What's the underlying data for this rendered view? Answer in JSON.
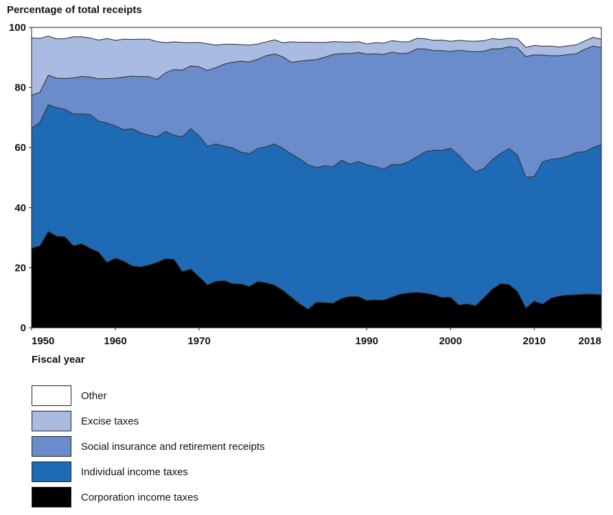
{
  "chart_data": {
    "type": "area",
    "stacked": true,
    "ylabel": "Percentage of total receipts",
    "xlabel": "Fiscal year",
    "ylim": [
      0,
      100
    ],
    "xlim": [
      1950,
      2018
    ],
    "yticks": [
      0,
      20,
      40,
      60,
      80,
      100
    ],
    "xticks": [
      1950,
      1960,
      1970,
      1990,
      2000,
      2010,
      2018
    ],
    "xtick_labels": [
      "1950",
      "1960",
      "1970",
      "1990",
      "2000",
      "2010",
      "2018"
    ],
    "grid": false,
    "legend_position": "bottom",
    "x": [
      1950,
      1951,
      1952,
      1953,
      1954,
      1955,
      1956,
      1957,
      1958,
      1959,
      1960,
      1961,
      1962,
      1963,
      1964,
      1965,
      1966,
      1967,
      1968,
      1969,
      1970,
      1971,
      1972,
      1973,
      1974,
      1975,
      1976,
      1977,
      1978,
      1979,
      1980,
      1981,
      1982,
      1983,
      1984,
      1985,
      1986,
      1987,
      1988,
      1989,
      1990,
      1991,
      1992,
      1993,
      1994,
      1995,
      1996,
      1997,
      1998,
      1999,
      2000,
      2001,
      2002,
      2003,
      2004,
      2005,
      2006,
      2007,
      2008,
      2009,
      2010,
      2011,
      2012,
      2013,
      2014,
      2015,
      2016,
      2017,
      2018
    ],
    "series": [
      {
        "name": "Corporation income taxes",
        "color": "#000000",
        "values": [
          26.5,
          27.3,
          32.1,
          30.5,
          30.3,
          27.3,
          28.0,
          26.5,
          25.2,
          21.8,
          23.2,
          22.2,
          20.6,
          20.3,
          20.9,
          21.8,
          23.0,
          22.8,
          18.7,
          19.6,
          17.0,
          14.3,
          15.5,
          15.7,
          14.7,
          14.6,
          13.8,
          15.4,
          15.0,
          14.2,
          12.5,
          10.2,
          8.0,
          6.2,
          8.5,
          8.4,
          8.2,
          9.8,
          10.4,
          10.4,
          9.1,
          9.3,
          9.2,
          10.2,
          11.2,
          11.6,
          11.8,
          11.5,
          11.0,
          10.1,
          10.2,
          7.6,
          8.0,
          7.4,
          10.1,
          12.9,
          14.7,
          14.4,
          12.1,
          6.6,
          8.9,
          7.9,
          9.9,
          10.6,
          10.9,
          11.0,
          11.2,
          11.2,
          11.0
        ]
      },
      {
        "name": "Individual income taxes",
        "color": "#1e6ab5",
        "values": [
          39.9,
          41.1,
          42.2,
          42.8,
          42.4,
          43.9,
          43.2,
          44.5,
          43.6,
          46.4,
          44.0,
          43.8,
          45.7,
          44.7,
          43.2,
          41.8,
          42.4,
          41.3,
          44.9,
          46.7,
          46.9,
          46.1,
          45.7,
          44.8,
          45.2,
          43.9,
          44.2,
          44.3,
          45.3,
          47.0,
          47.2,
          47.7,
          48.2,
          48.1,
          44.8,
          45.6,
          45.4,
          46.0,
          44.1,
          45.0,
          45.2,
          44.4,
          43.6,
          44.2,
          43.1,
          43.7,
          45.2,
          47.1,
          48.1,
          49.0,
          49.6,
          49.9,
          46.3,
          44.5,
          43.0,
          43.1,
          43.4,
          45.3,
          45.4,
          43.5,
          41.5,
          47.4,
          46.2,
          45.8,
          46.2,
          47.4,
          47.4,
          48.8,
          50.0
        ]
      },
      {
        "name": "Social insurance and retirement receipts",
        "color": "#6a8ccb",
        "values": [
          11.0,
          10.0,
          9.8,
          9.8,
          10.3,
          12.0,
          12.5,
          12.5,
          14.1,
          14.8,
          15.9,
          17.5,
          17.5,
          18.6,
          19.5,
          19.1,
          19.5,
          21.9,
          22.2,
          20.9,
          23.0,
          25.3,
          25.4,
          27.3,
          28.5,
          30.3,
          30.5,
          29.7,
          30.3,
          30.0,
          30.5,
          30.5,
          32.6,
          34.8,
          36.0,
          36.1,
          37.4,
          35.5,
          36.8,
          36.3,
          36.8,
          37.5,
          38.2,
          37.4,
          37.0,
          36.2,
          35.9,
          34.2,
          33.2,
          33.2,
          32.2,
          34.9,
          37.8,
          40.0,
          39.0,
          36.9,
          34.8,
          33.9,
          35.7,
          40.2,
          40.5,
          35.5,
          34.5,
          34.2,
          33.9,
          32.8,
          34.1,
          33.8,
          32.3
        ]
      },
      {
        "name": "Excise taxes",
        "color": "#aabbe2",
        "values": [
          19.1,
          18.0,
          13.0,
          13.1,
          13.3,
          13.7,
          13.2,
          13.0,
          12.9,
          13.3,
          12.6,
          12.6,
          12.2,
          12.5,
          12.5,
          12.6,
          10.0,
          9.2,
          9.2,
          7.7,
          8.1,
          8.9,
          7.5,
          6.6,
          6.0,
          5.5,
          5.6,
          5.1,
          4.6,
          4.7,
          4.7,
          6.8,
          6.3,
          6.0,
          5.7,
          4.9,
          4.3,
          3.9,
          3.8,
          3.6,
          3.4,
          3.7,
          3.8,
          3.8,
          4.0,
          3.7,
          3.5,
          3.4,
          3.4,
          3.5,
          3.4,
          3.3,
          3.4,
          3.5,
          3.5,
          3.4,
          3.1,
          2.8,
          3.0,
          3.1,
          3.1,
          3.0,
          3.2,
          2.9,
          2.9,
          3.0,
          2.8,
          2.9,
          2.8
        ]
      },
      {
        "name": "Other",
        "color": "#ffffff",
        "values": [
          3.5,
          3.6,
          2.9,
          3.8,
          3.7,
          3.1,
          3.1,
          3.5,
          4.2,
          3.7,
          4.3,
          3.9,
          4.0,
          3.9,
          3.9,
          4.7,
          5.1,
          4.8,
          5.0,
          5.1,
          5.0,
          5.4,
          5.9,
          5.6,
          5.6,
          5.7,
          5.9,
          5.5,
          4.8,
          4.1,
          5.1,
          4.8,
          4.9,
          4.9,
          5.0,
          5.0,
          4.7,
          4.8,
          4.9,
          4.7,
          5.5,
          5.1,
          5.2,
          4.4,
          4.7,
          4.8,
          3.6,
          3.8,
          4.3,
          4.2,
          4.6,
          4.3,
          4.5,
          4.6,
          4.4,
          3.7,
          4.0,
          3.6,
          3.8,
          6.6,
          6.0,
          6.2,
          6.2,
          6.5,
          6.1,
          5.8,
          4.5,
          3.3,
          3.9
        ]
      }
    ]
  }
}
